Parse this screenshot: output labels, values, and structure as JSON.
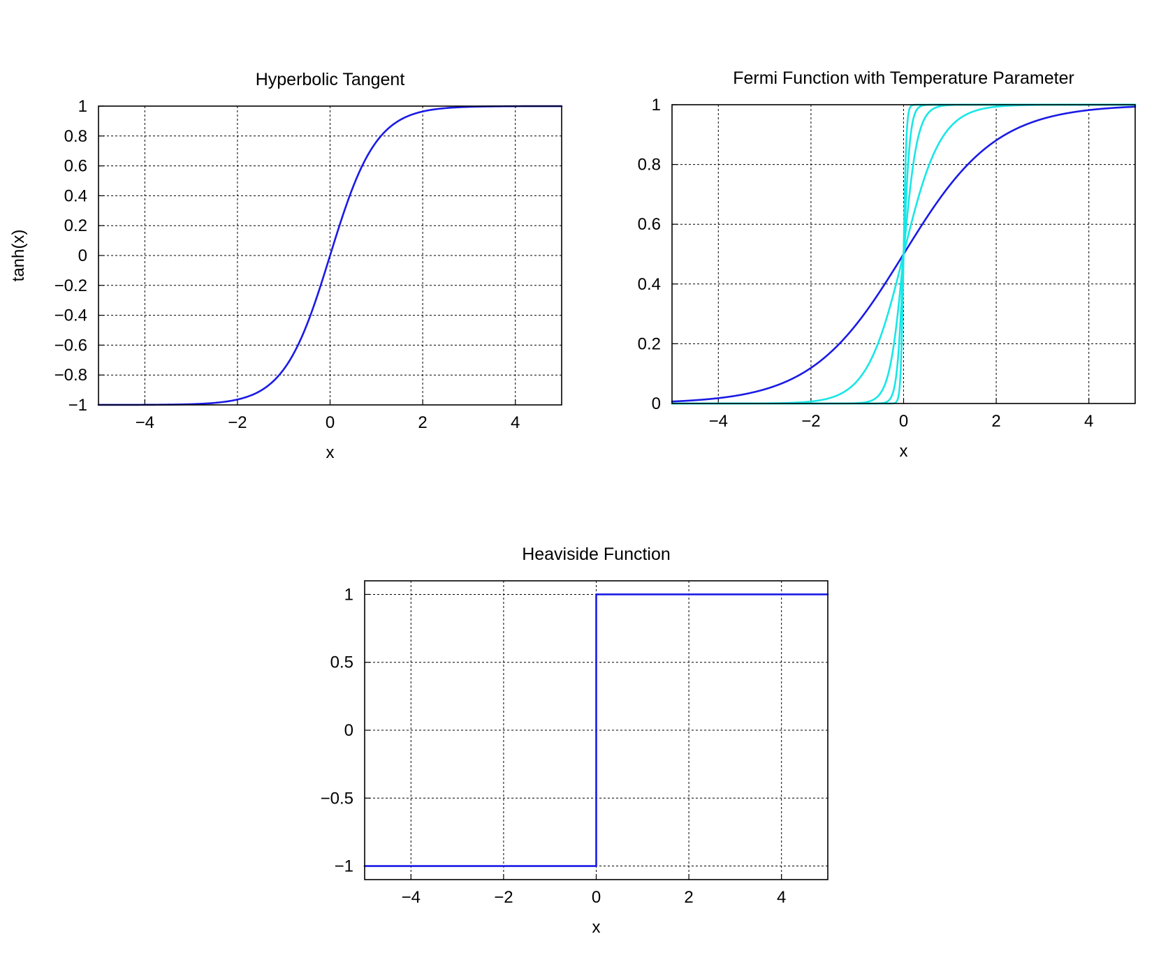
{
  "colors": {
    "blue": "#1a1ae6",
    "cyan": "#19e6e6",
    "grid": "#000000"
  },
  "chart_data": [
    {
      "type": "line",
      "title": "Hyperbolic Tangent",
      "xlabel": "x",
      "ylabel": "tanh(x)",
      "xlim": [
        -5,
        5
      ],
      "ylim": [
        -1,
        1
      ],
      "xticks": [
        -4,
        -2,
        0,
        2,
        4
      ],
      "xtick_labels": [
        "−4",
        "−2",
        "0",
        "2",
        "4"
      ],
      "yticks": [
        -1,
        -0.8,
        -0.6,
        -0.4,
        -0.2,
        0,
        0.2,
        0.4,
        0.6,
        0.8,
        1
      ],
      "ytick_labels": [
        "−1",
        "−0.8",
        "−0.6",
        "−0.4",
        "−0.2",
        "0",
        "0.2",
        "0.4",
        "0.6",
        "0.8",
        "1"
      ],
      "grid": true,
      "series": [
        {
          "function": "tanh",
          "color": "#1a1ae6",
          "x": [
            -5,
            -4,
            -3,
            -2,
            -1.5,
            -1,
            -0.5,
            0,
            0.5,
            1,
            1.5,
            2,
            3,
            4,
            5
          ],
          "y": [
            -1.0,
            -0.999,
            -0.995,
            -0.964,
            -0.905,
            -0.762,
            -0.462,
            0,
            0.462,
            0.762,
            0.905,
            0.964,
            0.995,
            0.999,
            1.0
          ]
        }
      ]
    },
    {
      "type": "line",
      "title": "Fermi Function with Temperature Parameter",
      "xlabel": "x",
      "ylabel": "",
      "xlim": [
        -5,
        5
      ],
      "ylim": [
        0,
        1
      ],
      "xticks": [
        -4,
        -2,
        0,
        2,
        4
      ],
      "xtick_labels": [
        "−4",
        "−2",
        "0",
        "2",
        "4"
      ],
      "yticks": [
        0,
        0.2,
        0.4,
        0.6,
        0.8,
        1
      ],
      "ytick_labels": [
        "0",
        "0.2",
        "0.4",
        "0.6",
        "0.8",
        "1"
      ],
      "grid": true,
      "series": [
        {
          "function": "fermi",
          "temperature": 1.0,
          "color": "#1a1ae6"
        },
        {
          "function": "fermi",
          "temperature": 0.4,
          "color": "#19e6e6"
        },
        {
          "function": "fermi",
          "temperature": 0.15,
          "color": "#19e6e6"
        },
        {
          "function": "fermi",
          "temperature": 0.07,
          "color": "#19e6e6"
        },
        {
          "function": "fermi",
          "temperature": 0.03,
          "color": "#19e6e6"
        }
      ]
    },
    {
      "type": "line",
      "title": "Heaviside Function",
      "xlabel": "x",
      "ylabel": "",
      "xlim": [
        -5,
        5
      ],
      "ylim": [
        -1.1,
        1.1
      ],
      "xticks": [
        -4,
        -2,
        0,
        2,
        4
      ],
      "xtick_labels": [
        "−4",
        "−2",
        "0",
        "2",
        "4"
      ],
      "yticks": [
        -1,
        -0.5,
        0,
        0.5,
        1
      ],
      "ytick_labels": [
        "−1",
        "−0.5",
        "0",
        "0.5",
        "1"
      ],
      "grid": true,
      "series": [
        {
          "function": "step",
          "color": "#1a1ae6",
          "x": [
            -5,
            0,
            0,
            5
          ],
          "y": [
            -1,
            -1,
            1,
            1
          ]
        }
      ]
    }
  ]
}
